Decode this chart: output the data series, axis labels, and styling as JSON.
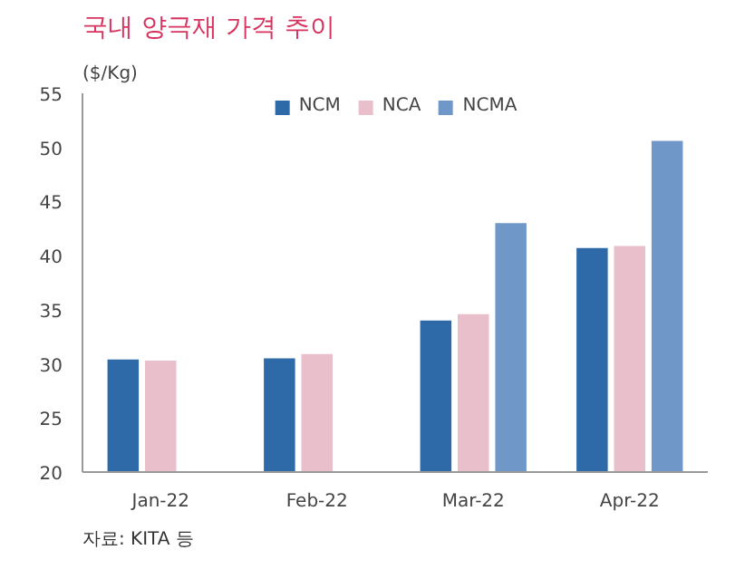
{
  "chart_data": {
    "type": "bar",
    "title": "국내 양극재 가격 추이",
    "ylabel": "($/Kg)",
    "annotations": [
      "자료: KITA 등"
    ],
    "categories": [
      "Jan-22",
      "Feb-22",
      "Mar-22",
      "Apr-22"
    ],
    "series": [
      {
        "name": "NCM",
        "color": "#2e6aa8",
        "values": [
          30.4,
          30.5,
          34.0,
          40.7
        ]
      },
      {
        "name": "NCA",
        "color": "#e9bfcb",
        "values": [
          30.3,
          30.9,
          34.6,
          40.9
        ]
      },
      {
        "name": "NCMA",
        "color": "#6f98c8",
        "values": [
          null,
          null,
          43.0,
          50.6
        ]
      }
    ],
    "ylim": [
      20,
      55
    ],
    "yticks": [
      20,
      25,
      30,
      35,
      40,
      45,
      50,
      55
    ],
    "grid": false,
    "legend": "top"
  }
}
